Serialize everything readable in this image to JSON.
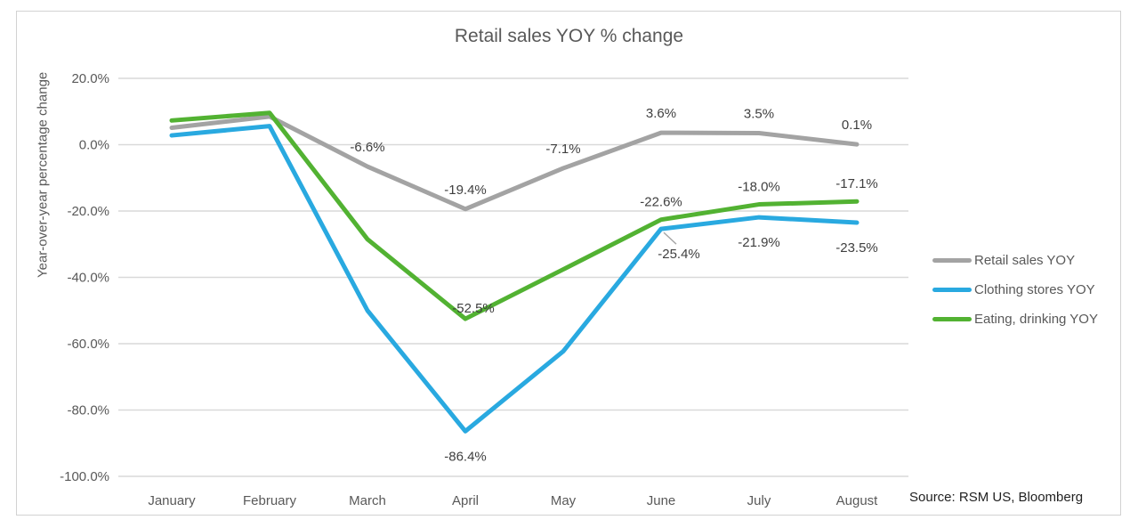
{
  "title": "Retail sales YOY % change",
  "y_axis_title": "Year-over-year percentage change",
  "source": "Source: RSM US, Bloomberg",
  "legend": [
    {
      "label": "Retail sales YOY",
      "color": "#a3a3a3"
    },
    {
      "label": "Clothing stores YOY",
      "color": "#29a9e0"
    },
    {
      "label": "Eating, drinking YOY",
      "color": "#52b232"
    }
  ],
  "chart_data": {
    "type": "line",
    "title": "Retail sales YOY % change",
    "categories": [
      "January",
      "February",
      "March",
      "April",
      "May",
      "June",
      "July",
      "August"
    ],
    "xlabel": "",
    "ylabel": "Year-over-year percentage change",
    "ylim": [
      -100,
      20
    ],
    "y_tick_values": [
      20,
      0,
      -20,
      -40,
      -60,
      -80,
      -100
    ],
    "y_tick_labels": [
      "20.0%",
      "0.0%",
      "-20.0%",
      "-40.0%",
      "-60.0%",
      "-80.0%",
      "-100.0%"
    ],
    "grid": "horizontal",
    "legend_position": "right",
    "series": [
      {
        "name": "Retail sales YOY",
        "color": "#a3a3a3",
        "values": [
          5.1,
          8.5,
          -6.6,
          -19.4,
          -7.1,
          3.6,
          3.5,
          0.1
        ],
        "labels": [
          null,
          null,
          "-6.6%",
          "-19.4%",
          "-7.1%",
          "3.6%",
          "3.5%",
          "0.1%"
        ]
      },
      {
        "name": "Clothing stores YOY",
        "color": "#29a9e0",
        "values": [
          2.8,
          5.6,
          -50.0,
          -86.4,
          -62.3,
          -25.4,
          -21.9,
          -23.5
        ],
        "labels": [
          null,
          null,
          null,
          "-86.4%",
          null,
          "-25.4%",
          "-21.9%",
          "-23.5%"
        ]
      },
      {
        "name": "Eating, drinking YOY",
        "color": "#52b232",
        "values": [
          7.3,
          9.6,
          -28.5,
          -52.5,
          -37.6,
          -22.6,
          -18.0,
          -17.1
        ],
        "labels": [
          null,
          null,
          null,
          "-52.5%",
          null,
          "-22.6%",
          "-18.0%",
          "-17.1%"
        ]
      }
    ]
  }
}
